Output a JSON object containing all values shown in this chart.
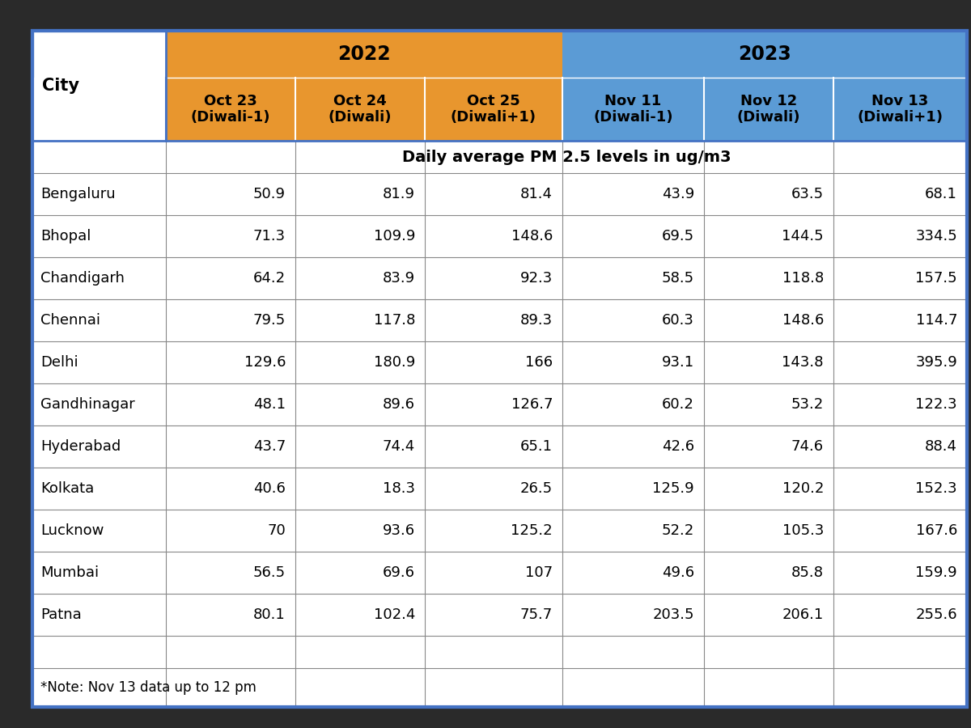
{
  "cities": [
    "Bengaluru",
    "Bhopal",
    "Chandigarh",
    "Chennai",
    "Delhi",
    "Gandhinagar",
    "Hyderabad",
    "Kolkata",
    "Lucknow",
    "Mumbai",
    "Patna"
  ],
  "col_headers_2022": [
    "Oct 23\n(Diwali-1)",
    "Oct 24\n(Diwali)",
    "Oct 25\n(Diwali+1)"
  ],
  "col_headers_2023": [
    "Nov 11\n(Diwali-1)",
    "Nov 12\n(Diwali)",
    "Nov 13\n(Diwali+1)"
  ],
  "data_2022": [
    [
      50.9,
      81.9,
      81.4
    ],
    [
      71.3,
      109.9,
      148.6
    ],
    [
      64.2,
      83.9,
      92.3
    ],
    [
      79.5,
      117.8,
      89.3
    ],
    [
      129.6,
      180.9,
      166.0
    ],
    [
      48.1,
      89.6,
      126.7
    ],
    [
      43.7,
      74.4,
      65.1
    ],
    [
      40.6,
      18.3,
      26.5
    ],
    [
      70.0,
      93.6,
      125.2
    ],
    [
      56.5,
      69.6,
      107.0
    ],
    [
      80.1,
      102.4,
      75.7
    ]
  ],
  "data_2023": [
    [
      43.9,
      63.5,
      68.1
    ],
    [
      69.5,
      144.5,
      334.5
    ],
    [
      58.5,
      118.8,
      157.5
    ],
    [
      60.3,
      148.6,
      114.7
    ],
    [
      93.1,
      143.8,
      395.9
    ],
    [
      60.2,
      53.2,
      122.3
    ],
    [
      42.6,
      74.6,
      88.4
    ],
    [
      125.9,
      120.2,
      152.3
    ],
    [
      52.2,
      105.3,
      167.6
    ],
    [
      49.6,
      85.8,
      159.9
    ],
    [
      203.5,
      206.1,
      255.6
    ]
  ],
  "color_2022": "#E8962E",
  "color_2023": "#5B9BD5",
  "cell_line_color": "#888888",
  "white": "#ffffff",
  "note": "*Note: Nov 13 data up to 12 pm",
  "subtitle": "Daily average PM 2.5 levels in ug/m3",
  "outer_border_color": "#4472C4",
  "bg_color": "#d0d0d0",
  "fig_bg": "#2a2a2a"
}
